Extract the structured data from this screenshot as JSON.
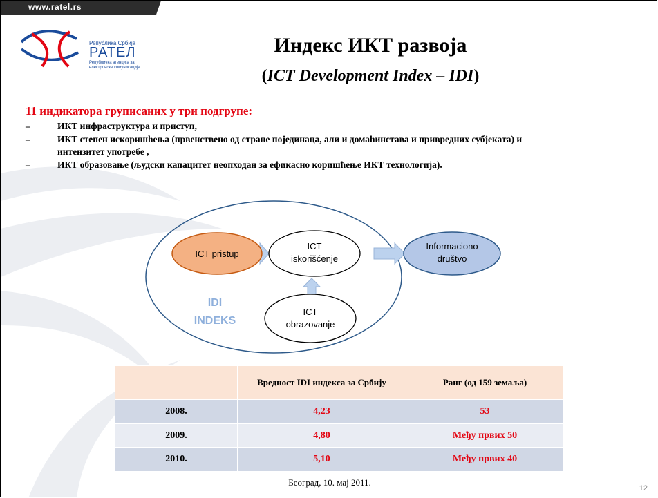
{
  "header": {
    "url": "www.ratel.rs",
    "logo": {
      "top": "Република Србија",
      "name": "РАТЕЛ",
      "line1": "Републичка агенција за",
      "line2": "електронске комуникације"
    }
  },
  "title": "Индекс ИКТ развоја",
  "subtitle": {
    "open": "(",
    "text": "ICT Development Index – IDI",
    "close": ")"
  },
  "heading": "11 индикатора груписаних у три подгрупе:",
  "bullets": [
    {
      "marker": "–",
      "text": "ИКТ инфраструктура и приступ,"
    },
    {
      "marker": "–",
      "text": "ИКТ степен искоришћења (првенствено од стране појединаца, али и домаћинстава и привредних субјеката) и интензитет употребе ,"
    },
    {
      "marker": "–",
      "text": "ИКТ образовање (људски капацитет неопходан за ефикасно коришћење ИКТ технологија)."
    }
  ],
  "diagram": {
    "nodes": [
      {
        "line1": "ICT pristup"
      },
      {
        "line1": "ICT",
        "line2": "iskorišćenje"
      },
      {
        "line1": "Informaciono",
        "line2": "društvo"
      },
      {
        "line1": "ICT",
        "line2": "obrazovanje"
      }
    ],
    "group": {
      "line1": "IDI",
      "line2": "INDEKS"
    }
  },
  "table": {
    "header": [
      "",
      "Вредност IDI индекса за Србију",
      "Ранг (од 159 земаља)"
    ],
    "rows": [
      [
        "2008.",
        "4,23",
        "53"
      ],
      [
        "2009.",
        "4,80",
        "Међу првих 50"
      ],
      [
        "2010.",
        "5,10",
        "Међу првих 40"
      ]
    ]
  },
  "footer": "Београд, 10. мај 2011.",
  "page_number": "12"
}
